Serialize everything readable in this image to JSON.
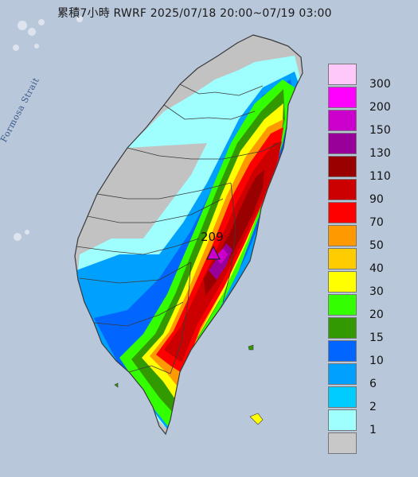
{
  "header": {
    "title": "累積7小時 RWRF 2025/07/18 20:00~07/19 03:00"
  },
  "map": {
    "sea_label": "Formosa Strait",
    "peak_value": "209",
    "colors": {
      "sea": "#b9c7da",
      "land_gray": "#c2c2c2",
      "border": "#3a3a3a"
    }
  },
  "legend": {
    "items": [
      {
        "label": "300",
        "color": "#ffc8fa"
      },
      {
        "label": "200",
        "color": "#ff00ff"
      },
      {
        "label": "150",
        "color": "#cc00cc"
      },
      {
        "label": "130",
        "color": "#990099"
      },
      {
        "label": "110",
        "color": "#990000"
      },
      {
        "label": "90",
        "color": "#cc0000"
      },
      {
        "label": "70",
        "color": "#ff0000"
      },
      {
        "label": "50",
        "color": "#ff9900"
      },
      {
        "label": "40",
        "color": "#ffcc00"
      },
      {
        "label": "30",
        "color": "#ffff00"
      },
      {
        "label": "20",
        "color": "#33ff00"
      },
      {
        "label": "15",
        "color": "#339900"
      },
      {
        "label": "10",
        "color": "#0066ff"
      },
      {
        "label": "6",
        "color": "#00a0ff"
      },
      {
        "label": "2",
        "color": "#00ccff"
      },
      {
        "label": "1",
        "color": "#9fffff"
      },
      {
        "label": "",
        "color": "#c8c8c8"
      }
    ]
  }
}
